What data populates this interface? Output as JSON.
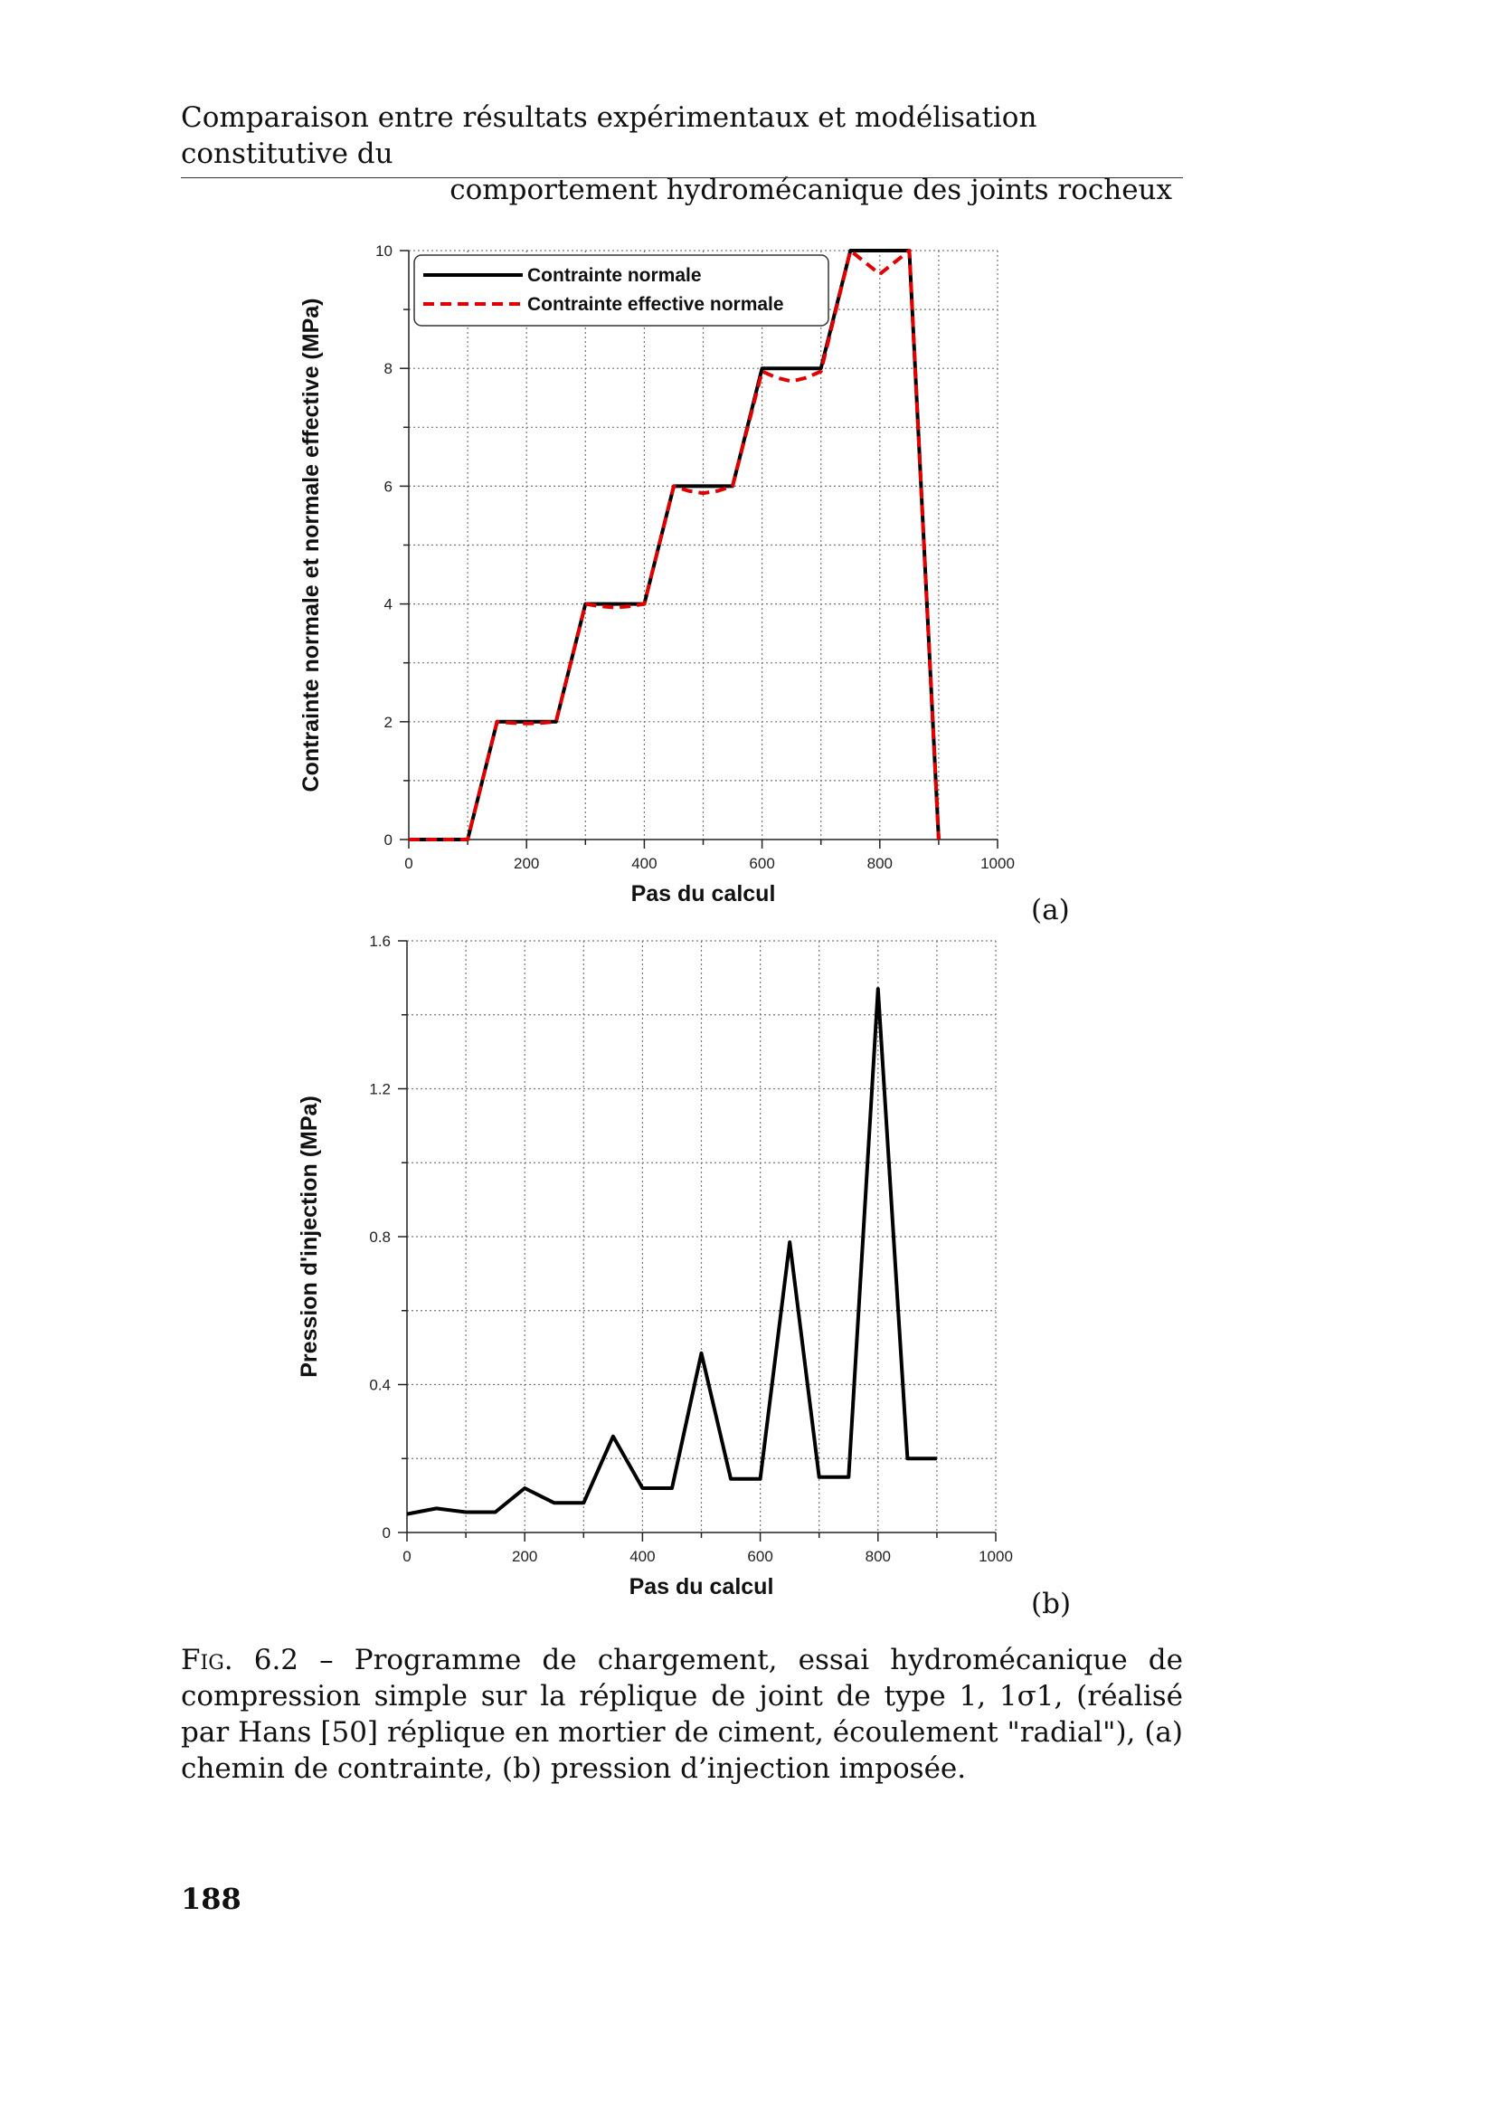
{
  "header": {
    "line1": "Comparaison entre résultats expérimentaux et modélisation constitutive du",
    "line2": "comportement hydromécanique des joints rocheux"
  },
  "chart_data": [
    {
      "type": "line",
      "panel_label": "(a)",
      "xlabel": "Pas du calcul",
      "ylabel": "Contrainte normale et normale effective (MPa)",
      "xlim": [
        0,
        1000
      ],
      "ylim": [
        0,
        10
      ],
      "x_ticks": [
        "0",
        "200",
        "400",
        "600",
        "800",
        "1000"
      ],
      "y_ticks": [
        "0",
        "2",
        "4",
        "6",
        "8",
        "10"
      ],
      "grid": true,
      "legend_position": "top-left",
      "series": [
        {
          "name": "Contrainte normale",
          "color": "#000000",
          "style": "solid",
          "x": [
            0,
            100,
            150,
            250,
            300,
            400,
            450,
            550,
            600,
            700,
            750,
            850,
            900
          ],
          "y": [
            0,
            0,
            2,
            2,
            4,
            4,
            6,
            6,
            8,
            8,
            10,
            10,
            0
          ]
        },
        {
          "name": "Contrainte effective normale",
          "color": "#e00000",
          "style": "dashed",
          "x": [
            0,
            100,
            150,
            175,
            200,
            225,
            250,
            300,
            325,
            350,
            375,
            400,
            450,
            475,
            500,
            525,
            550,
            600,
            625,
            650,
            675,
            700,
            750,
            775,
            800,
            825,
            850,
            900
          ],
          "y": [
            0,
            0,
            2,
            1.98,
            1.97,
            1.98,
            2,
            4,
            3.96,
            3.94,
            3.96,
            4,
            6,
            5.92,
            5.88,
            5.92,
            6,
            7.95,
            7.84,
            7.78,
            7.84,
            7.95,
            10,
            9.8,
            9.6,
            9.8,
            10,
            0
          ]
        }
      ]
    },
    {
      "type": "line",
      "panel_label": "(b)",
      "xlabel": "Pas du calcul",
      "ylabel": "Pression d'injection  (MPa)",
      "xlim": [
        0,
        1000
      ],
      "ylim": [
        0,
        1.6
      ],
      "x_ticks": [
        "0",
        "200",
        "400",
        "600",
        "800",
        "1000"
      ],
      "y_ticks": [
        "0",
        "0.4",
        "0.8",
        "1.2",
        "1.6"
      ],
      "grid": true,
      "series": [
        {
          "color": "#000000",
          "style": "solid",
          "x": [
            0,
            50,
            100,
            150,
            200,
            250,
            300,
            350,
            400,
            450,
            500,
            550,
            600,
            650,
            700,
            750,
            800,
            850,
            900
          ],
          "y": [
            0.05,
            0.065,
            0.055,
            0.055,
            0.12,
            0.08,
            0.08,
            0.26,
            0.12,
            0.12,
            0.485,
            0.145,
            0.145,
            0.785,
            0.15,
            0.15,
            1.47,
            0.2,
            0.2
          ]
        }
      ]
    }
  ],
  "caption": {
    "label": "Fig. 6.2",
    "text": " – Programme de chargement, essai hydromécanique de compression simple sur la réplique de joint de type 1, 1σ1, (réalisé par Hans [50] réplique en mortier de ciment, écoulement \"radial\"), (a) chemin de contrainte, (b) pression d’injection imposée."
  },
  "page_number": "188"
}
